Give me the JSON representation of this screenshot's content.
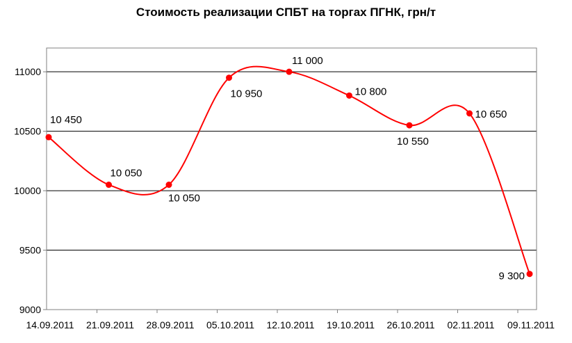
{
  "chart_data": {
    "type": "line",
    "title": "Стоимость реализации СПБТ на торгах ПГНК, грн/т",
    "xlabel": "",
    "ylabel": "",
    "categories": [
      "14.09.2011",
      "21.09.2011",
      "28.09.2011",
      "05.10.2011",
      "12.10.2011",
      "19.10.2011",
      "26.10.2011",
      "02.11.2011",
      "09.11.2011"
    ],
    "series": [
      {
        "values": [
          10450,
          10050,
          10050,
          10950,
          11000,
          10800,
          10550,
          10650,
          9300
        ],
        "data_labels": [
          "10 450",
          "10 050",
          "10 050",
          "10 950",
          "11 000",
          "10 800",
          "10 550",
          "10 650",
          "9 300"
        ],
        "color": "#ff0000"
      }
    ],
    "ylim": [
      9000,
      11200
    ],
    "yticks": [
      9000,
      9500,
      10000,
      10500,
      11000
    ],
    "grid": true,
    "legend": "none",
    "smooth": true
  }
}
